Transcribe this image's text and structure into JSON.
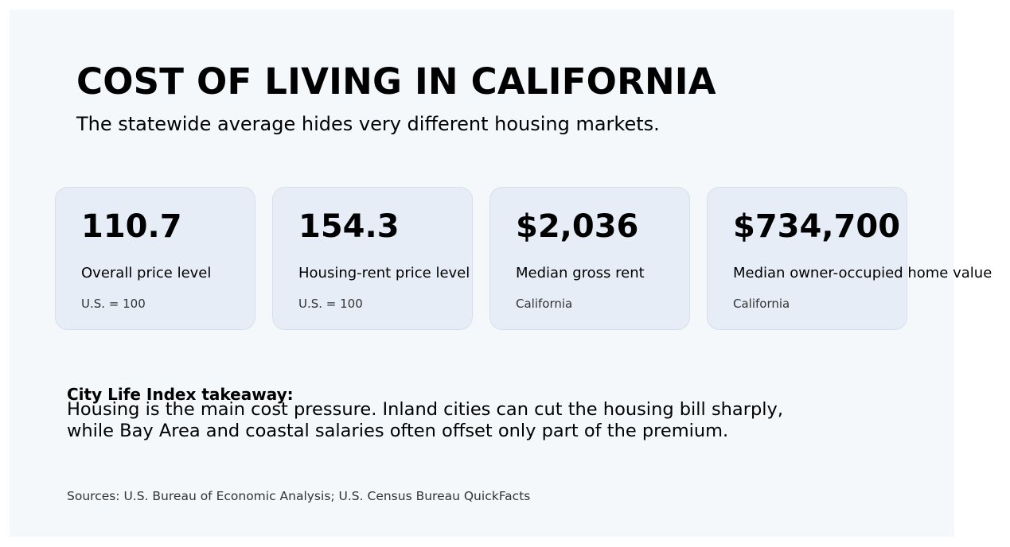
{
  "header": {
    "title": "COST OF LIVING IN CALIFORNIA",
    "subtitle": "The statewide average hides very different housing markets."
  },
  "cards": [
    {
      "value": "110.7",
      "label": "Overall price level",
      "note": "U.S. = 100"
    },
    {
      "value": "154.3",
      "label": "Housing-rent price level",
      "note": "U.S. = 100"
    },
    {
      "value": "$2,036",
      "label": "Median gross rent",
      "note": "California"
    },
    {
      "value": "$734,700",
      "label": "Median owner-occupied home value",
      "note": "California"
    }
  ],
  "takeaway": {
    "heading": "City Life Index takeaway:",
    "lines": [
      "Housing is the main cost pressure. Inland cities can cut the housing bill sharply,",
      "while Bay Area and coastal salaries often offset only part of the premium."
    ]
  },
  "footer": {
    "sources": "Sources: U.S. Bureau of Economic Analysis; U.S. Census Bureau QuickFacts"
  },
  "colors": {
    "panel_background": "#f4f8fb",
    "card_background": "#e6edf6",
    "card_border": "#d7e0ea",
    "text": "#000000",
    "muted_text": "#333333"
  }
}
